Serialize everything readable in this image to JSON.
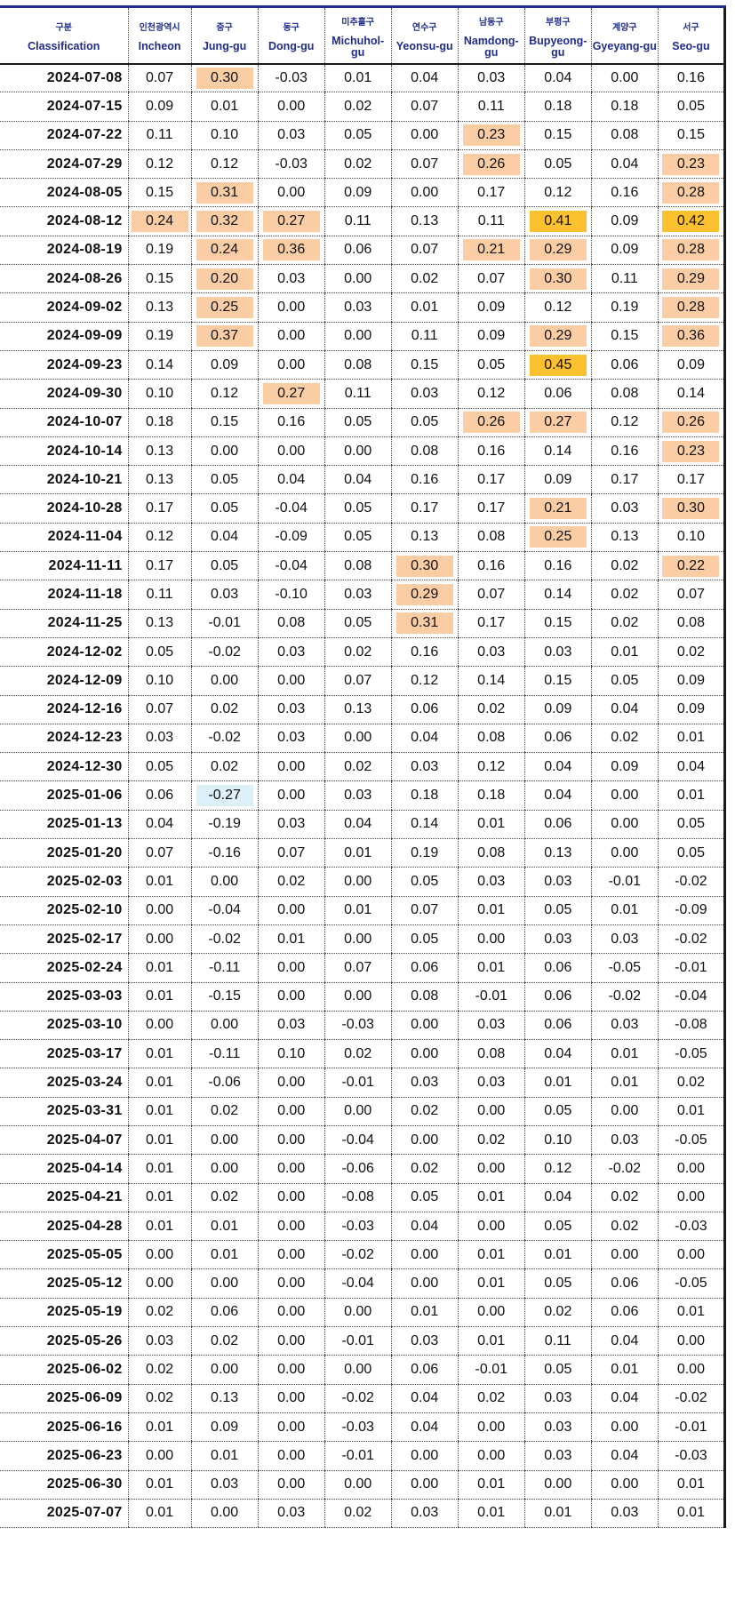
{
  "headers": {
    "date": {
      "ko": "구분",
      "en": "Classification"
    },
    "regions": [
      {
        "ko": "인천광역시",
        "en": "Incheon"
      },
      {
        "ko": "중구",
        "en": "Jung-gu"
      },
      {
        "ko": "동구",
        "en": "Dong-gu"
      },
      {
        "ko": "미추홀구",
        "en": "Michuhol-gu"
      },
      {
        "ko": "연수구",
        "en": "Yeonsu-gu"
      },
      {
        "ko": "남동구",
        "en": "Namdong-gu"
      },
      {
        "ko": "부평구",
        "en": "Bupyeong-gu"
      },
      {
        "ko": "계양구",
        "en": "Gyeyang-gu"
      },
      {
        "ko": "서구",
        "en": "Seo-gu"
      }
    ]
  },
  "colors": {
    "high": "#fbcda5",
    "peak": "#fbc12e",
    "negative": "#ddeff9",
    "header_text": "#1f2d8c"
  },
  "rows": [
    {
      "date": "2024-07-08",
      "values": [
        "0.07",
        "0.30",
        "-0.03",
        "0.01",
        "0.04",
        "0.03",
        "0.04",
        "0.00",
        "0.16"
      ],
      "hl": [
        "",
        "a",
        "",
        "",
        "",
        "",
        "",
        "",
        ""
      ]
    },
    {
      "date": "2024-07-15",
      "values": [
        "0.09",
        "0.01",
        "0.00",
        "0.02",
        "0.07",
        "0.11",
        "0.18",
        "0.18",
        "0.05"
      ],
      "hl": [
        "",
        "",
        "",
        "",
        "",
        "",
        "",
        "",
        ""
      ]
    },
    {
      "date": "2024-07-22",
      "values": [
        "0.11",
        "0.10",
        "0.03",
        "0.05",
        "0.00",
        "0.23",
        "0.15",
        "0.08",
        "0.15"
      ],
      "hl": [
        "",
        "",
        "",
        "",
        "",
        "a",
        "",
        "",
        ""
      ]
    },
    {
      "date": "2024-07-29",
      "values": [
        "0.12",
        "0.12",
        "-0.03",
        "0.02",
        "0.07",
        "0.26",
        "0.05",
        "0.04",
        "0.23"
      ],
      "hl": [
        "",
        "",
        "",
        "",
        "",
        "a",
        "",
        "",
        "a"
      ]
    },
    {
      "date": "2024-08-05",
      "values": [
        "0.15",
        "0.31",
        "0.00",
        "0.09",
        "0.00",
        "0.17",
        "0.12",
        "0.16",
        "0.28"
      ],
      "hl": [
        "",
        "a",
        "",
        "",
        "",
        "",
        "",
        "",
        "a"
      ]
    },
    {
      "date": "2024-08-12",
      "values": [
        "0.24",
        "0.32",
        "0.27",
        "0.11",
        "0.13",
        "0.11",
        "0.41",
        "0.09",
        "0.42"
      ],
      "hl": [
        "a",
        "a",
        "a",
        "",
        "",
        "",
        "b",
        "",
        "b"
      ]
    },
    {
      "date": "2024-08-19",
      "values": [
        "0.19",
        "0.24",
        "0.36",
        "0.06",
        "0.07",
        "0.21",
        "0.29",
        "0.09",
        "0.28"
      ],
      "hl": [
        "",
        "a",
        "a",
        "",
        "",
        "a",
        "a",
        "",
        "a"
      ]
    },
    {
      "date": "2024-08-26",
      "values": [
        "0.15",
        "0.20",
        "0.03",
        "0.00",
        "0.02",
        "0.07",
        "0.30",
        "0.11",
        "0.29"
      ],
      "hl": [
        "",
        "a",
        "",
        "",
        "",
        "",
        "a",
        "",
        "a"
      ]
    },
    {
      "date": "2024-09-02",
      "values": [
        "0.13",
        "0.25",
        "0.00",
        "0.03",
        "0.01",
        "0.09",
        "0.12",
        "0.19",
        "0.28"
      ],
      "hl": [
        "",
        "a",
        "",
        "",
        "",
        "",
        "",
        "",
        "a"
      ]
    },
    {
      "date": "2024-09-09",
      "values": [
        "0.19",
        "0.37",
        "0.00",
        "0.00",
        "0.11",
        "0.09",
        "0.29",
        "0.15",
        "0.36"
      ],
      "hl": [
        "",
        "a",
        "",
        "",
        "",
        "",
        "a",
        "",
        "a"
      ]
    },
    {
      "date": "2024-09-23",
      "values": [
        "0.14",
        "0.09",
        "0.00",
        "0.08",
        "0.15",
        "0.05",
        "0.45",
        "0.06",
        "0.09"
      ],
      "hl": [
        "",
        "",
        "",
        "",
        "",
        "",
        "b",
        "",
        ""
      ]
    },
    {
      "date": "2024-09-30",
      "values": [
        "0.10",
        "0.12",
        "0.27",
        "0.11",
        "0.03",
        "0.12",
        "0.06",
        "0.08",
        "0.14"
      ],
      "hl": [
        "",
        "",
        "a",
        "",
        "",
        "",
        "",
        "",
        ""
      ]
    },
    {
      "date": "2024-10-07",
      "values": [
        "0.18",
        "0.15",
        "0.16",
        "0.05",
        "0.05",
        "0.26",
        "0.27",
        "0.12",
        "0.26"
      ],
      "hl": [
        "",
        "",
        "",
        "",
        "",
        "a",
        "a",
        "",
        "a"
      ]
    },
    {
      "date": "2024-10-14",
      "values": [
        "0.13",
        "0.00",
        "0.00",
        "0.00",
        "0.08",
        "0.16",
        "0.14",
        "0.16",
        "0.23"
      ],
      "hl": [
        "",
        "",
        "",
        "",
        "",
        "",
        "",
        "",
        "a"
      ]
    },
    {
      "date": "2024-10-21",
      "values": [
        "0.13",
        "0.05",
        "0.04",
        "0.04",
        "0.16",
        "0.17",
        "0.09",
        "0.17",
        "0.17"
      ],
      "hl": [
        "",
        "",
        "",
        "",
        "",
        "",
        "",
        "",
        ""
      ]
    },
    {
      "date": "2024-10-28",
      "values": [
        "0.17",
        "0.05",
        "-0.04",
        "0.05",
        "0.17",
        "0.17",
        "0.21",
        "0.03",
        "0.30"
      ],
      "hl": [
        "",
        "",
        "",
        "",
        "",
        "",
        "a",
        "",
        "a"
      ]
    },
    {
      "date": "2024-11-04",
      "values": [
        "0.12",
        "0.04",
        "-0.09",
        "0.05",
        "0.13",
        "0.08",
        "0.25",
        "0.13",
        "0.10"
      ],
      "hl": [
        "",
        "",
        "",
        "",
        "",
        "",
        "a",
        "",
        ""
      ]
    },
    {
      "date": "2024-11-11",
      "values": [
        "0.17",
        "0.05",
        "-0.04",
        "0.08",
        "0.30",
        "0.16",
        "0.16",
        "0.02",
        "0.22"
      ],
      "hl": [
        "",
        "",
        "",
        "",
        "a",
        "",
        "",
        "",
        "a"
      ]
    },
    {
      "date": "2024-11-18",
      "values": [
        "0.11",
        "0.03",
        "-0.10",
        "0.03",
        "0.29",
        "0.07",
        "0.14",
        "0.02",
        "0.07"
      ],
      "hl": [
        "",
        "",
        "",
        "",
        "a",
        "",
        "",
        "",
        ""
      ]
    },
    {
      "date": "2024-11-25",
      "values": [
        "0.13",
        "-0.01",
        "0.08",
        "0.05",
        "0.31",
        "0.17",
        "0.15",
        "0.02",
        "0.08"
      ],
      "hl": [
        "",
        "",
        "",
        "",
        "a",
        "",
        "",
        "",
        ""
      ]
    },
    {
      "date": "2024-12-02",
      "values": [
        "0.05",
        "-0.02",
        "0.03",
        "0.02",
        "0.16",
        "0.03",
        "0.03",
        "0.01",
        "0.02"
      ],
      "hl": [
        "",
        "",
        "",
        "",
        "",
        "",
        "",
        "",
        ""
      ]
    },
    {
      "date": "2024-12-09",
      "values": [
        "0.10",
        "0.00",
        "0.00",
        "0.07",
        "0.12",
        "0.14",
        "0.15",
        "0.05",
        "0.09"
      ],
      "hl": [
        "",
        "",
        "",
        "",
        "",
        "",
        "",
        "",
        ""
      ]
    },
    {
      "date": "2024-12-16",
      "values": [
        "0.07",
        "0.02",
        "0.03",
        "0.13",
        "0.06",
        "0.02",
        "0.09",
        "0.04",
        "0.09"
      ],
      "hl": [
        "",
        "",
        "",
        "",
        "",
        "",
        "",
        "",
        ""
      ]
    },
    {
      "date": "2024-12-23",
      "values": [
        "0.03",
        "-0.02",
        "0.03",
        "0.00",
        "0.04",
        "0.08",
        "0.06",
        "0.02",
        "0.01"
      ],
      "hl": [
        "",
        "",
        "",
        "",
        "",
        "",
        "",
        "",
        ""
      ]
    },
    {
      "date": "2024-12-30",
      "values": [
        "0.05",
        "0.02",
        "0.00",
        "0.02",
        "0.03",
        "0.12",
        "0.04",
        "0.09",
        "0.04"
      ],
      "hl": [
        "",
        "",
        "",
        "",
        "",
        "",
        "",
        "",
        ""
      ]
    },
    {
      "date": "2025-01-06",
      "values": [
        "0.06",
        "-0.27",
        "0.00",
        "0.03",
        "0.18",
        "0.18",
        "0.04",
        "0.00",
        "0.01"
      ],
      "hl": [
        "",
        "n",
        "",
        "",
        "",
        "",
        "",
        "",
        ""
      ]
    },
    {
      "date": "2025-01-13",
      "values": [
        "0.04",
        "-0.19",
        "0.03",
        "0.04",
        "0.14",
        "0.01",
        "0.06",
        "0.00",
        "0.05"
      ],
      "hl": [
        "",
        "",
        "",
        "",
        "",
        "",
        "",
        "",
        ""
      ]
    },
    {
      "date": "2025-01-20",
      "values": [
        "0.07",
        "-0.16",
        "0.07",
        "0.01",
        "0.19",
        "0.08",
        "0.13",
        "0.00",
        "0.05"
      ],
      "hl": [
        "",
        "",
        "",
        "",
        "",
        "",
        "",
        "",
        ""
      ]
    },
    {
      "date": "2025-02-03",
      "values": [
        "0.01",
        "0.00",
        "0.02",
        "0.00",
        "0.05",
        "0.03",
        "0.03",
        "-0.01",
        "-0.02"
      ],
      "hl": [
        "",
        "",
        "",
        "",
        "",
        "",
        "",
        "",
        ""
      ]
    },
    {
      "date": "2025-02-10",
      "values": [
        "0.00",
        "-0.04",
        "0.00",
        "0.01",
        "0.07",
        "0.01",
        "0.05",
        "0.01",
        "-0.09"
      ],
      "hl": [
        "",
        "",
        "",
        "",
        "",
        "",
        "",
        "",
        ""
      ]
    },
    {
      "date": "2025-02-17",
      "values": [
        "0.00",
        "-0.02",
        "0.01",
        "0.00",
        "0.05",
        "0.00",
        "0.03",
        "0.03",
        "-0.02"
      ],
      "hl": [
        "",
        "",
        "",
        "",
        "",
        "",
        "",
        "",
        ""
      ]
    },
    {
      "date": "2025-02-24",
      "values": [
        "0.01",
        "-0.11",
        "0.00",
        "0.07",
        "0.06",
        "0.01",
        "0.06",
        "-0.05",
        "-0.01"
      ],
      "hl": [
        "",
        "",
        "",
        "",
        "",
        "",
        "",
        "",
        ""
      ]
    },
    {
      "date": "2025-03-03",
      "values": [
        "0.01",
        "-0.15",
        "0.00",
        "0.00",
        "0.08",
        "-0.01",
        "0.06",
        "-0.02",
        "-0.04"
      ],
      "hl": [
        "",
        "",
        "",
        "",
        "",
        "",
        "",
        "",
        ""
      ]
    },
    {
      "date": "2025-03-10",
      "values": [
        "0.00",
        "0.00",
        "0.03",
        "-0.03",
        "0.00",
        "0.03",
        "0.06",
        "0.03",
        "-0.08"
      ],
      "hl": [
        "",
        "",
        "",
        "",
        "",
        "",
        "",
        "",
        ""
      ]
    },
    {
      "date": "2025-03-17",
      "values": [
        "0.01",
        "-0.11",
        "0.10",
        "0.02",
        "0.00",
        "0.08",
        "0.04",
        "0.01",
        "-0.05"
      ],
      "hl": [
        "",
        "",
        "",
        "",
        "",
        "",
        "",
        "",
        ""
      ]
    },
    {
      "date": "2025-03-24",
      "values": [
        "0.01",
        "-0.06",
        "0.00",
        "-0.01",
        "0.03",
        "0.03",
        "0.01",
        "0.01",
        "0.02"
      ],
      "hl": [
        "",
        "",
        "",
        "",
        "",
        "",
        "",
        "",
        ""
      ]
    },
    {
      "date": "2025-03-31",
      "values": [
        "0.01",
        "0.02",
        "0.00",
        "0.00",
        "0.02",
        "0.00",
        "0.05",
        "0.00",
        "0.01"
      ],
      "hl": [
        "",
        "",
        "",
        "",
        "",
        "",
        "",
        "",
        ""
      ]
    },
    {
      "date": "2025-04-07",
      "values": [
        "0.01",
        "0.00",
        "0.00",
        "-0.04",
        "0.00",
        "0.02",
        "0.10",
        "0.03",
        "-0.05"
      ],
      "hl": [
        "",
        "",
        "",
        "",
        "",
        "",
        "",
        "",
        ""
      ]
    },
    {
      "date": "2025-04-14",
      "values": [
        "0.01",
        "0.00",
        "0.00",
        "-0.06",
        "0.02",
        "0.00",
        "0.12",
        "-0.02",
        "0.00"
      ],
      "hl": [
        "",
        "",
        "",
        "",
        "",
        "",
        "",
        "",
        ""
      ]
    },
    {
      "date": "2025-04-21",
      "values": [
        "0.01",
        "0.02",
        "0.00",
        "-0.08",
        "0.05",
        "0.01",
        "0.04",
        "0.02",
        "0.00"
      ],
      "hl": [
        "",
        "",
        "",
        "",
        "",
        "",
        "",
        "",
        ""
      ]
    },
    {
      "date": "2025-04-28",
      "values": [
        "0.01",
        "0.01",
        "0.00",
        "-0.03",
        "0.04",
        "0.00",
        "0.05",
        "0.02",
        "-0.03"
      ],
      "hl": [
        "",
        "",
        "",
        "",
        "",
        "",
        "",
        "",
        ""
      ]
    },
    {
      "date": "2025-05-05",
      "values": [
        "0.00",
        "0.01",
        "0.00",
        "-0.02",
        "0.00",
        "0.01",
        "0.01",
        "0.00",
        "0.00"
      ],
      "hl": [
        "",
        "",
        "",
        "",
        "",
        "",
        "",
        "",
        ""
      ]
    },
    {
      "date": "2025-05-12",
      "values": [
        "0.00",
        "0.00",
        "0.00",
        "-0.04",
        "0.00",
        "0.01",
        "0.05",
        "0.06",
        "-0.05"
      ],
      "hl": [
        "",
        "",
        "",
        "",
        "",
        "",
        "",
        "",
        ""
      ]
    },
    {
      "date": "2025-05-19",
      "values": [
        "0.02",
        "0.06",
        "0.00",
        "0.00",
        "0.01",
        "0.00",
        "0.02",
        "0.06",
        "0.01"
      ],
      "hl": [
        "",
        "",
        "",
        "",
        "",
        "",
        "",
        "",
        ""
      ]
    },
    {
      "date": "2025-05-26",
      "values": [
        "0.03",
        "0.02",
        "0.00",
        "-0.01",
        "0.03",
        "0.01",
        "0.11",
        "0.04",
        "0.00"
      ],
      "hl": [
        "",
        "",
        "",
        "",
        "",
        "",
        "",
        "",
        ""
      ]
    },
    {
      "date": "2025-06-02",
      "values": [
        "0.02",
        "0.00",
        "0.00",
        "0.00",
        "0.06",
        "-0.01",
        "0.05",
        "0.01",
        "0.00"
      ],
      "hl": [
        "",
        "",
        "",
        "",
        "",
        "",
        "",
        "",
        ""
      ]
    },
    {
      "date": "2025-06-09",
      "values": [
        "0.02",
        "0.13",
        "0.00",
        "-0.02",
        "0.04",
        "0.02",
        "0.03",
        "0.04",
        "-0.02"
      ],
      "hl": [
        "",
        "",
        "",
        "",
        "",
        "",
        "",
        "",
        ""
      ]
    },
    {
      "date": "2025-06-16",
      "values": [
        "0.01",
        "0.09",
        "0.00",
        "-0.03",
        "0.04",
        "0.00",
        "0.03",
        "0.00",
        "-0.01"
      ],
      "hl": [
        "",
        "",
        "",
        "",
        "",
        "",
        "",
        "",
        ""
      ]
    },
    {
      "date": "2025-06-23",
      "values": [
        "0.00",
        "0.01",
        "0.00",
        "-0.01",
        "0.00",
        "0.00",
        "0.03",
        "0.04",
        "-0.03"
      ],
      "hl": [
        "",
        "",
        "",
        "",
        "",
        "",
        "",
        "",
        ""
      ]
    },
    {
      "date": "2025-06-30",
      "values": [
        "0.01",
        "0.03",
        "0.00",
        "0.00",
        "0.00",
        "0.01",
        "0.00",
        "0.00",
        "0.01"
      ],
      "hl": [
        "",
        "",
        "",
        "",
        "",
        "",
        "",
        "",
        ""
      ]
    },
    {
      "date": "2025-07-07",
      "values": [
        "0.01",
        "0.00",
        "0.03",
        "0.02",
        "0.03",
        "0.01",
        "0.01",
        "0.03",
        "0.01"
      ],
      "hl": [
        "",
        "",
        "",
        "",
        "",
        "",
        "",
        "",
        ""
      ]
    }
  ]
}
